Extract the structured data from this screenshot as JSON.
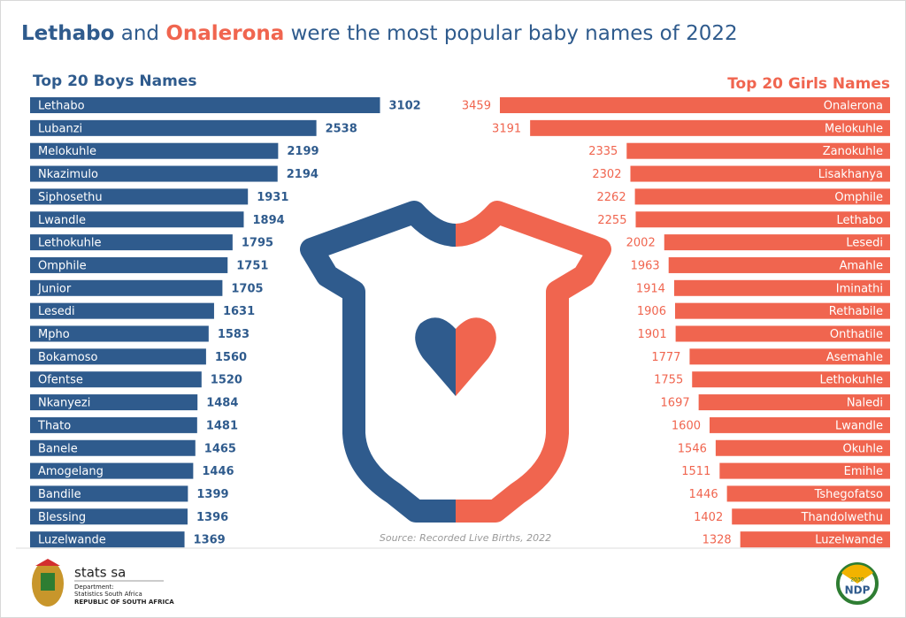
{
  "title_parts": [
    "Lethabo",
    "and",
    "Onalerona",
    "were the most popular baby names of 2022"
  ],
  "source": "Source: Recorded Live Births, 2022",
  "footer": {
    "org": "stats sa",
    "dept": "Department:",
    "dept_name": "Statistics South Africa",
    "country": "REPUBLIC OF SOUTH AFRICA",
    "ndp": "NDP",
    "ndp_year": "2030"
  },
  "chart_data": [
    {
      "type": "bar",
      "orientation": "horizontal",
      "side": "left",
      "title": "Top 20 Boys Names",
      "color": "#2f5b8d",
      "categories": [
        "Lethabo",
        "Lubanzi",
        "Melokuhle",
        "Nkazimulo",
        "Siphosethu",
        "Lwandle",
        "Lethokuhle",
        "Omphile",
        "Junior",
        "Lesedi",
        "Mpho",
        "Bokamoso",
        "Ofentse",
        "Nkanyezi",
        "Thato",
        "Banele",
        "Amogelang",
        "Bandile",
        "Blessing",
        "Luzelwande"
      ],
      "values": [
        3102,
        2538,
        2199,
        2194,
        1931,
        1894,
        1795,
        1751,
        1705,
        1631,
        1583,
        1560,
        1520,
        1484,
        1481,
        1465,
        1446,
        1399,
        1396,
        1369
      ]
    },
    {
      "type": "bar",
      "orientation": "horizontal",
      "side": "right",
      "title": "Top 20 Girls Names",
      "color": "#f0654f",
      "categories": [
        "Onalerona",
        "Melokuhle",
        "Zanokuhle",
        "Lisakhanya",
        "Omphile",
        "Lethabo",
        "Lesedi",
        "Amahle",
        "Iminathi",
        "Rethabile",
        "Onthatile",
        "Asemahle",
        "Lethokuhle",
        "Naledi",
        "Lwandle",
        "Okuhle",
        "Emihle",
        "Tshegofatso",
        "Thandolwethu",
        "Luzelwande"
      ],
      "values": [
        3459,
        3191,
        2335,
        2302,
        2262,
        2255,
        2002,
        1963,
        1914,
        1906,
        1901,
        1777,
        1755,
        1697,
        1600,
        1546,
        1511,
        1446,
        1402,
        1328
      ]
    }
  ]
}
